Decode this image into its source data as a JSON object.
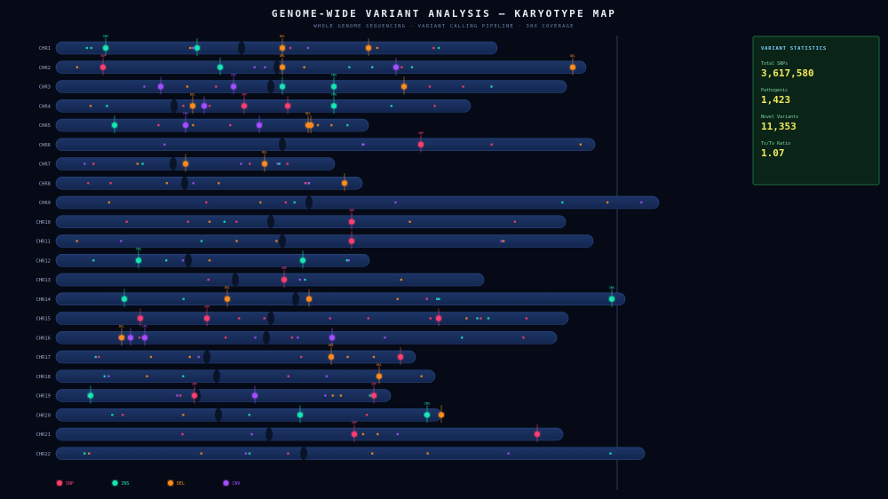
{
  "header": {
    "title": "GENOME-WIDE VARIANT ANALYSIS — KARYOTYPE MAP",
    "subtitle": "WHOLE GENOME SEQUENCING · VARIANT CALLING PIPELINE · 30X COVERAGE"
  },
  "chromosomes": [
    "CHR1",
    "CHR2",
    "CHR3",
    "CHR4",
    "CHR5",
    "CHR6",
    "CHR7",
    "CHR8",
    "CHR9",
    "CHR10",
    "CHR11",
    "CHR12",
    "CHR13",
    "CHR14",
    "CHR15",
    "CHR16",
    "CHR17",
    "CHR18",
    "CHR19",
    "CHR20",
    "CHR21",
    "CHR22"
  ],
  "statistics": {
    "title": "VARIANT STATISTICS",
    "items": [
      {
        "label": "Total SNPs",
        "value": "3,617,580"
      },
      {
        "label": "Pathogenic",
        "value": "1,423"
      },
      {
        "label": "Novel Variants",
        "value": "11,353"
      },
      {
        "label": "Ts/Tv Ratio",
        "value": "1.07"
      }
    ]
  },
  "legend": [
    "SNP",
    "INS",
    "DEL",
    "CNV"
  ]
}
